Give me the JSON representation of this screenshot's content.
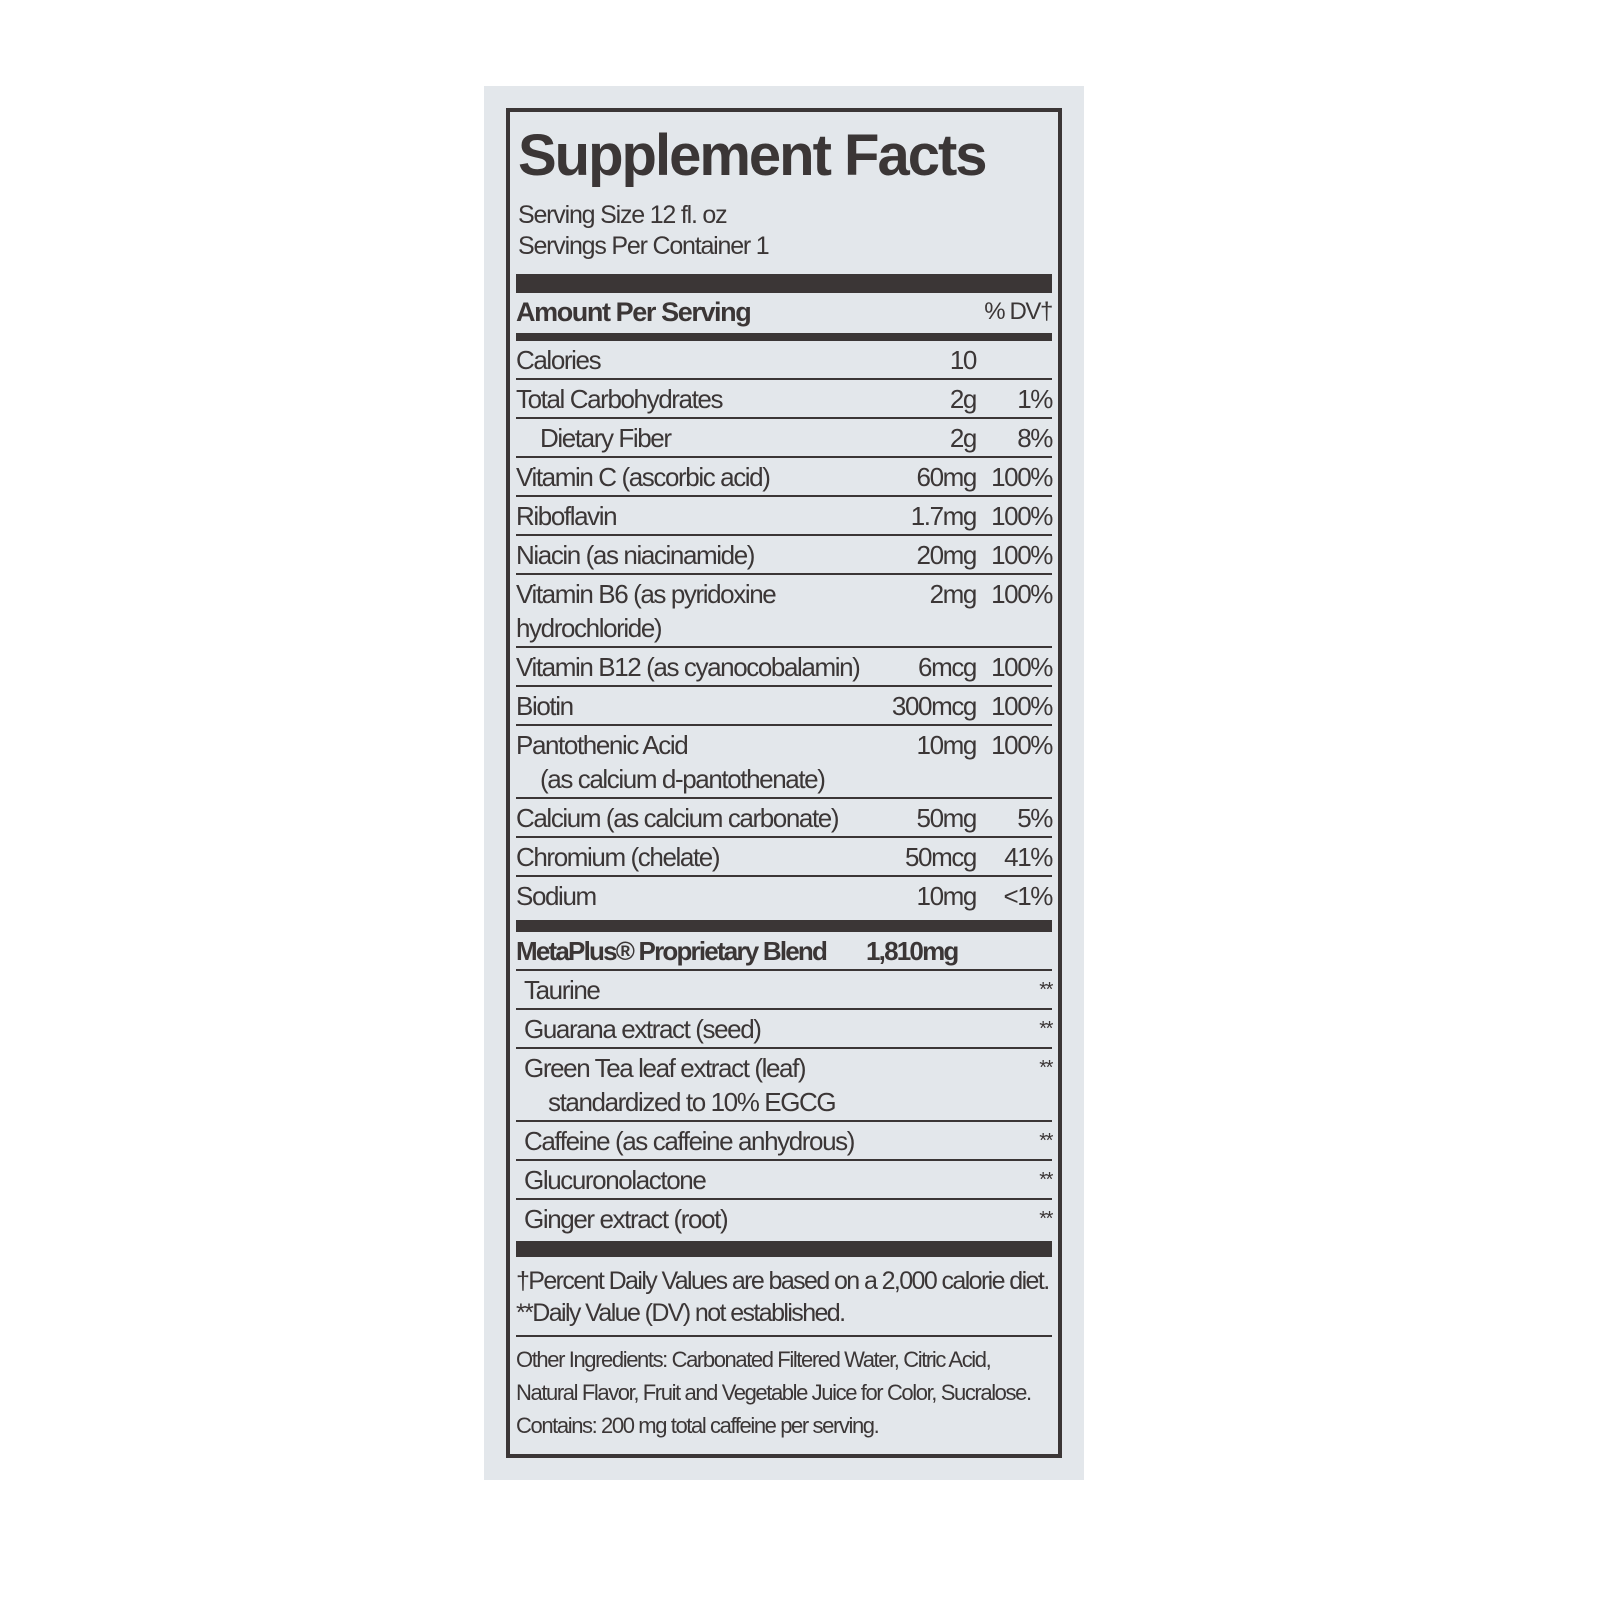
{
  "title": "Supplement Facts",
  "serving_size": "Serving Size 12 fl. oz",
  "servings_per_container": "Servings Per Container 1",
  "header": {
    "amount": "Amount Per Serving",
    "dv": "% DV†"
  },
  "nutrients": [
    {
      "name": "Calories",
      "amount": "10",
      "dv": ""
    },
    {
      "name": "Total Carbohydrates",
      "amount": "2g",
      "dv": "1%"
    },
    {
      "name": "Dietary Fiber",
      "amount": "2g",
      "dv": "8%"
    },
    {
      "name": "Vitamin C (ascorbic acid)",
      "amount": "60mg",
      "dv": "100%"
    },
    {
      "name": "Riboflavin",
      "amount": "1.7mg",
      "dv": "100%"
    },
    {
      "name": "Niacin (as niacinamide)",
      "amount": "20mg",
      "dv": "100%"
    },
    {
      "name": "Vitamin B6 (as pyridoxine hydrochloride)",
      "amount": "2mg",
      "dv": "100%"
    },
    {
      "name": "Vitamin B12 (as cyanocobalamin)",
      "amount": "6mcg",
      "dv": "100%"
    },
    {
      "name": "Biotin",
      "amount": "300mcg",
      "dv": "100%"
    },
    {
      "name": "Pantothenic Acid",
      "name_line2": "(as calcium d-pantothenate)",
      "amount": "10mg",
      "dv": "100%"
    },
    {
      "name": "Calcium (as calcium carbonate)",
      "amount": "50mg",
      "dv": "5%"
    },
    {
      "name": "Chromium (chelate)",
      "amount": "50mcg",
      "dv": "41%"
    },
    {
      "name": "Sodium",
      "amount": "10mg",
      "dv": "<1%"
    }
  ],
  "blend": {
    "name": "MetaPlus® Proprietary Blend",
    "amount": "1,810mg"
  },
  "blend_items": [
    {
      "name": "Taurine",
      "dv": "**"
    },
    {
      "name": "Guarana extract (seed)",
      "dv": "**"
    },
    {
      "name": "Green Tea leaf extract (leaf)",
      "name_line2": "standardized to 10% EGCG",
      "dv": "**"
    },
    {
      "name": "Caffeine (as caffeine anhydrous)",
      "dv": "**"
    },
    {
      "name": "Glucuronolactone",
      "dv": "**"
    },
    {
      "name": "Ginger extract (root)",
      "dv": "**"
    }
  ],
  "footnotes": [
    "†Percent Daily Values are based on a 2,000 calorie diet.",
    "**Daily Value (DV) not established."
  ],
  "other_ingredients": [
    "Other Ingredients: Carbonated Filtered Water, Citric Acid,",
    "Natural Flavor, Fruit and Vegetable Juice for Color, Sucralose.",
    "Contains: 200 mg total caffeine per serving."
  ],
  "colors": {
    "ink": "#3b3636",
    "background": "#e3e7eb"
  }
}
